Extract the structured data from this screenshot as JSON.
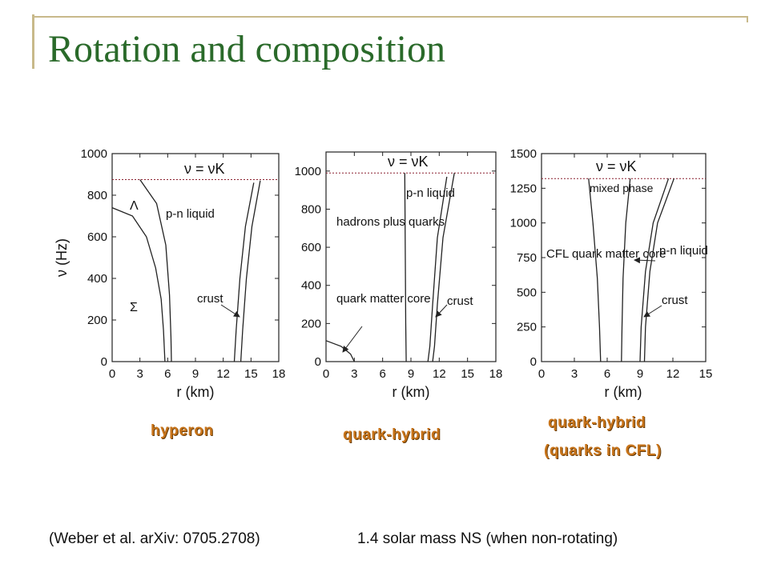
{
  "slide": {
    "title": "Rotation and composition",
    "footer_left": "(Weber et al. arXiv: 0705.2708)",
    "footer_right": "1.4 solar mass NS (when non-rotating)",
    "panel_labels": [
      "hyperon",
      "quark-hybrid",
      "quark-hybrid",
      "(quarks in CFL)"
    ],
    "accent_color": "#2a6a2a",
    "label_color": "#c8741a"
  },
  "chart_data": [
    {
      "type": "line",
      "xlabel": "r (km)",
      "ylabel": "ν (Hz)",
      "xlim": [
        0,
        18
      ],
      "ylim": [
        0,
        1000
      ],
      "xticks": [
        0,
        3,
        6,
        9,
        12,
        15,
        18
      ],
      "yticks": [
        0,
        200,
        400,
        600,
        800,
        1000
      ],
      "kepler_line": {
        "y": 875,
        "label": "ν = νK"
      },
      "series": [
        {
          "x": [
            0,
            2.2,
            3.7,
            4.7,
            5.3,
            5.55,
            5.65,
            5.7
          ],
          "y": [
            740,
            700,
            600,
            450,
            300,
            150,
            50,
            0
          ]
        },
        {
          "x": [
            3.0,
            4.8,
            5.8,
            6.2,
            6.35,
            6.4
          ],
          "y": [
            875,
            760,
            560,
            320,
            120,
            0
          ]
        },
        {
          "x": [
            13.2,
            13.4,
            13.8,
            14.4,
            15.3
          ],
          "y": [
            0,
            150,
            400,
            650,
            860
          ]
        },
        {
          "x": [
            13.9,
            14.1,
            14.5,
            15.1,
            16.0
          ],
          "y": [
            0,
            150,
            400,
            650,
            870
          ]
        }
      ],
      "annotations": [
        "Λ",
        "p-n liquid",
        "Σ",
        "crust"
      ]
    },
    {
      "type": "line",
      "xlabel": "r (km)",
      "xlim": [
        0,
        18
      ],
      "ylim": [
        0,
        1100
      ],
      "xticks": [
        0,
        3,
        6,
        9,
        12,
        15,
        18
      ],
      "yticks": [
        0,
        200,
        400,
        600,
        800,
        1000
      ],
      "kepler_line": {
        "y": 990,
        "label": "ν = νK"
      },
      "series": [
        {
          "x": [
            0,
            1.6,
            2.6,
            3.0
          ],
          "y": [
            110,
            80,
            40,
            0
          ]
        },
        {
          "x": [
            8.35,
            8.4,
            8.45,
            8.5
          ],
          "y": [
            990,
            600,
            200,
            0
          ]
        },
        {
          "x": [
            10.8,
            11.0,
            11.3,
            11.8,
            12.8
          ],
          "y": [
            0,
            80,
            300,
            650,
            970
          ]
        },
        {
          "x": [
            11.3,
            11.5,
            11.8,
            12.4,
            13.6
          ],
          "y": [
            0,
            80,
            300,
            650,
            990
          ]
        }
      ],
      "annotations": [
        "p-n liquid",
        "hadrons plus quarks",
        "quark matter core",
        "crust"
      ]
    },
    {
      "type": "line",
      "xlabel": "r (km)",
      "xlim": [
        0,
        15
      ],
      "ylim": [
        0,
        1500
      ],
      "xticks": [
        0,
        3,
        6,
        9,
        12,
        15
      ],
      "yticks": [
        0,
        250,
        500,
        750,
        1000,
        1250,
        1500
      ],
      "kepler_line": {
        "y": 1320,
        "label": "ν = νK"
      },
      "series": [
        {
          "x": [
            4.3,
            4.7,
            5.1,
            5.3,
            5.4
          ],
          "y": [
            1320,
            1000,
            600,
            250,
            0
          ]
        },
        {
          "x": [
            8.1,
            7.7,
            7.45,
            7.35,
            7.3
          ],
          "y": [
            1320,
            1000,
            600,
            250,
            0
          ]
        },
        {
          "x": [
            9.0,
            9.1,
            9.5,
            10.2,
            11.6
          ],
          "y": [
            0,
            250,
            650,
            1000,
            1320
          ]
        },
        {
          "x": [
            9.4,
            9.5,
            9.9,
            10.6,
            12.1
          ],
          "y": [
            0,
            250,
            650,
            1000,
            1320
          ]
        }
      ],
      "annotations": [
        "mixed phase",
        "CFL quark matter core",
        "p-n liquid",
        "crust"
      ]
    }
  ]
}
